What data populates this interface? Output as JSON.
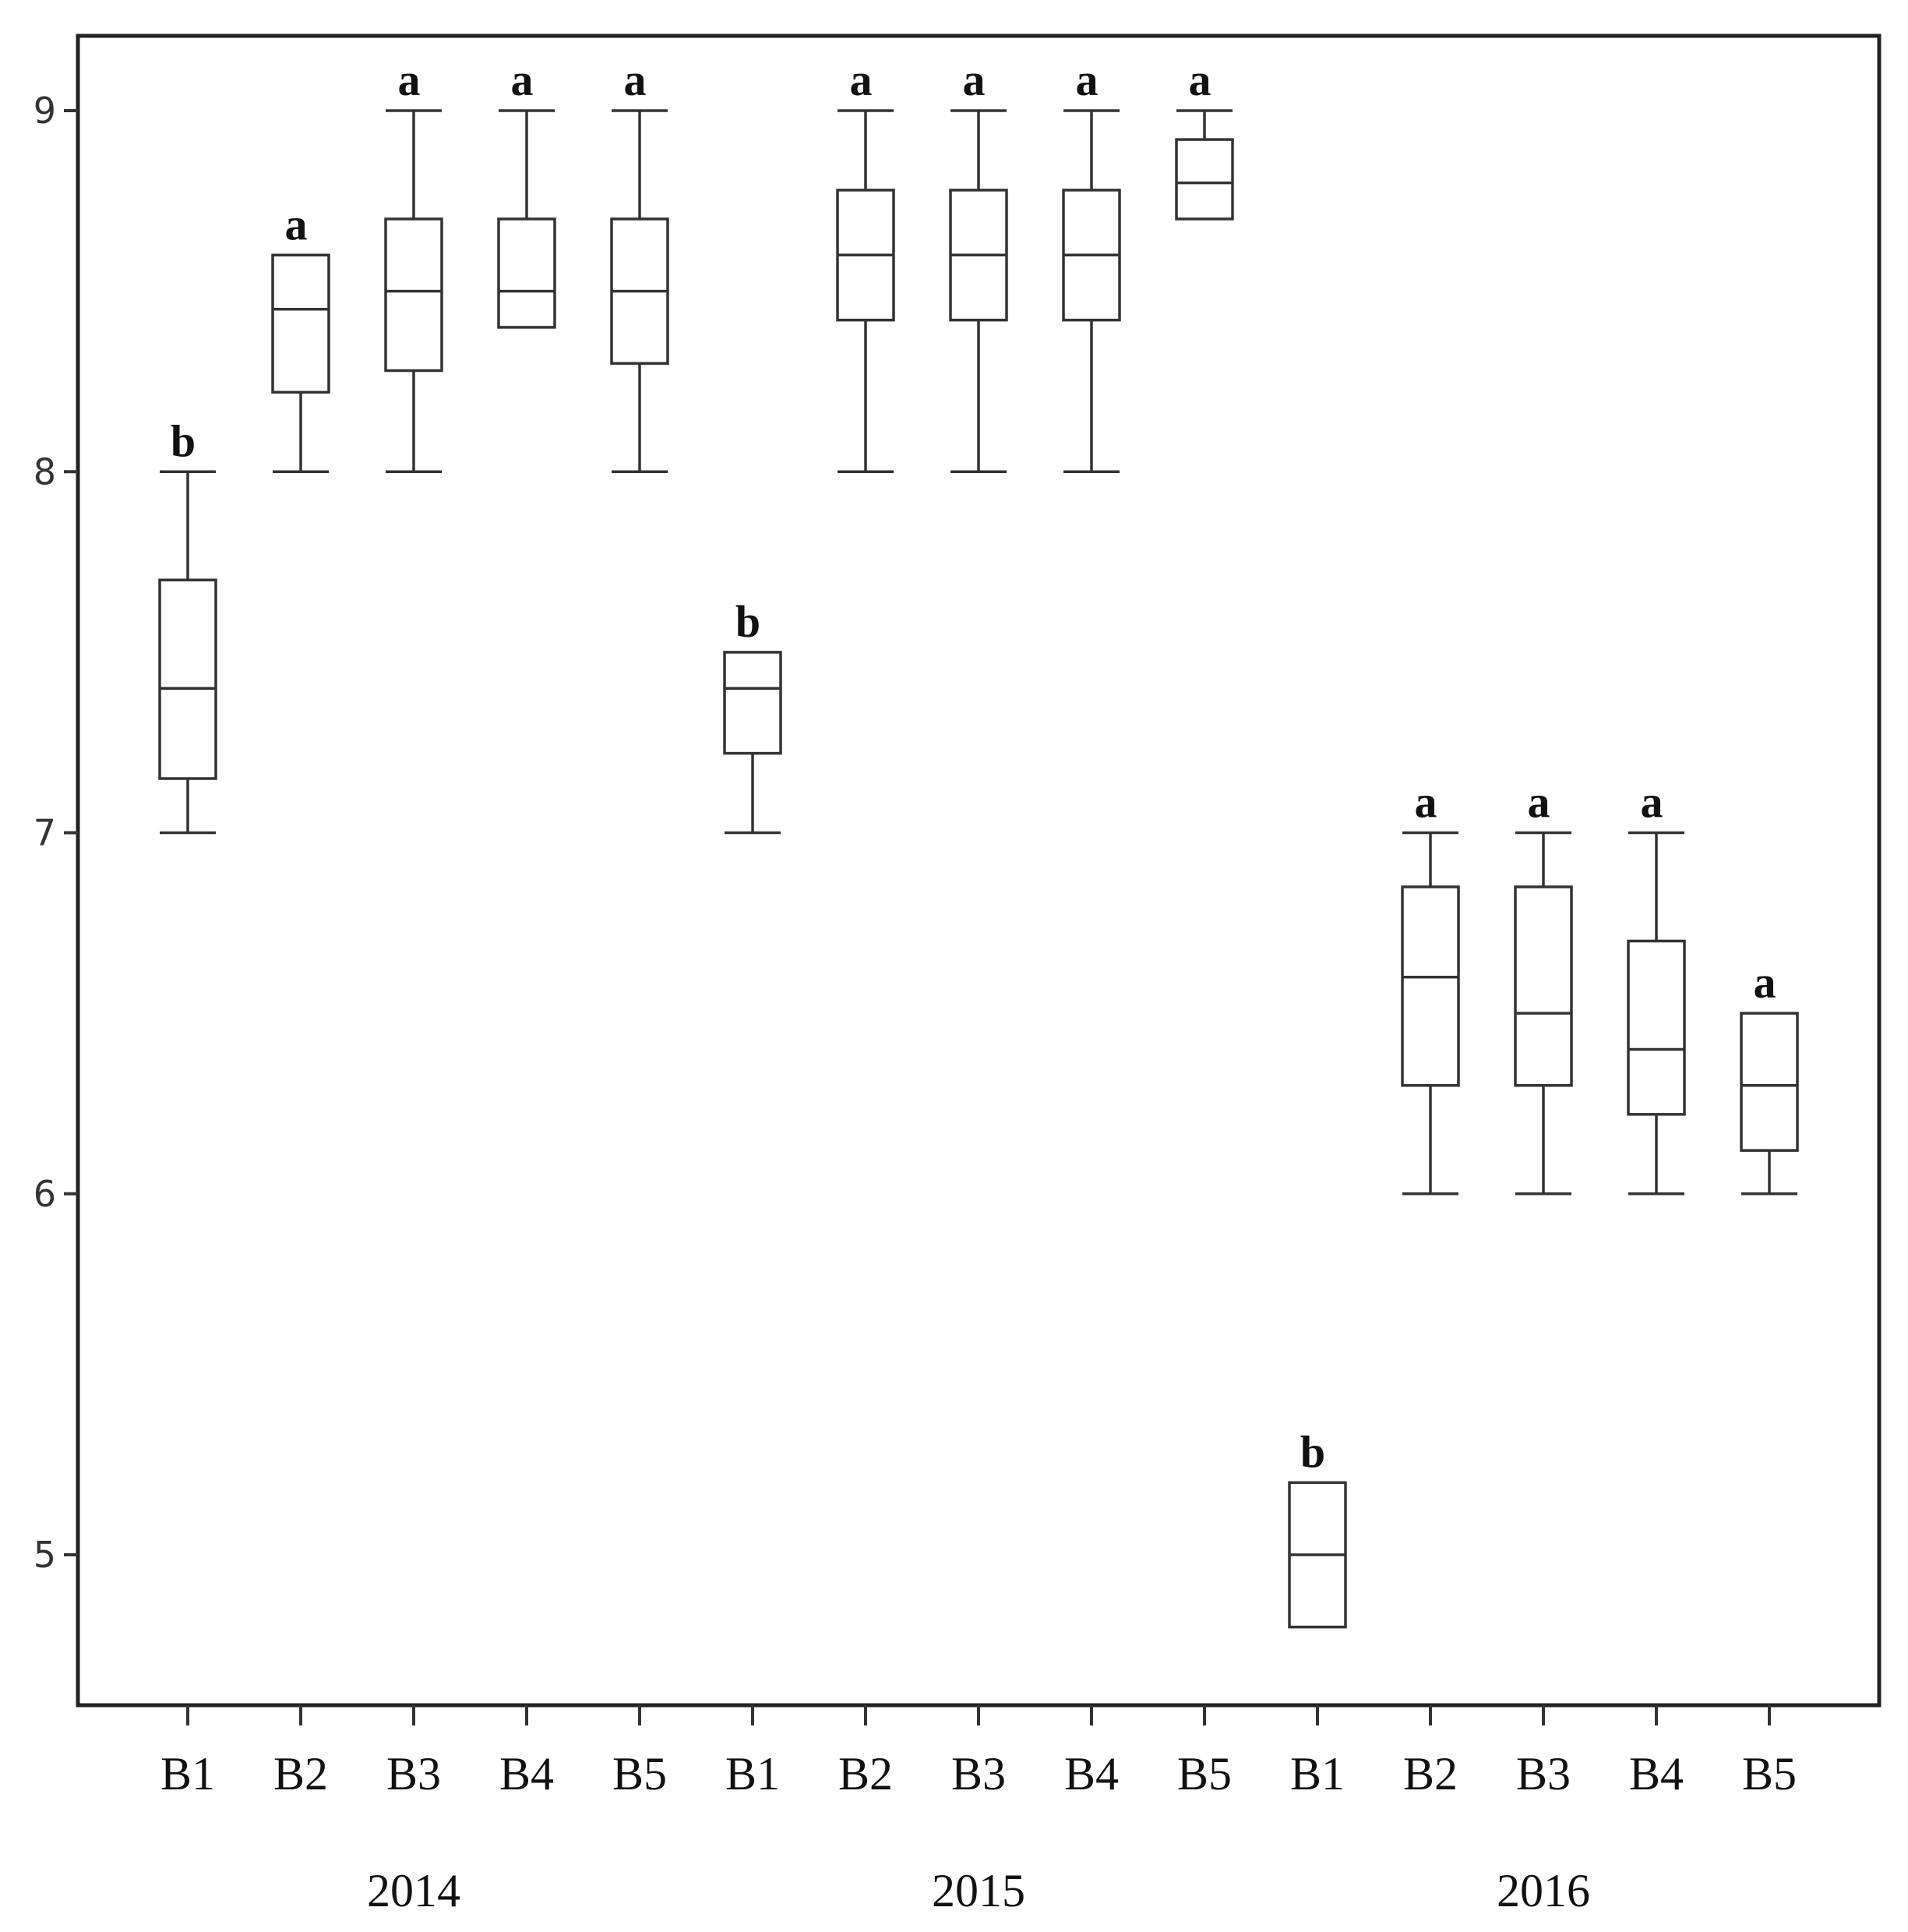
{
  "chart_data": {
    "type": "boxplot",
    "title": "",
    "xlabel": "",
    "ylabel": "",
    "ylim": [
      4.6,
      9.2
    ],
    "yticks": [
      5,
      6,
      7,
      8,
      9
    ],
    "grid": false,
    "legend": "none",
    "groups": [
      "2014",
      "2015",
      "2016"
    ],
    "categories": [
      "B1",
      "B2",
      "B3",
      "B4",
      "B5",
      "B1",
      "B2",
      "B3",
      "B4",
      "B5",
      "B1",
      "B2",
      "B3",
      "B4",
      "B5"
    ],
    "boxes": [
      {
        "group": "2014",
        "label": "B1",
        "min": 7.0,
        "q1": 7.15,
        "median": 7.4,
        "q3": 7.7,
        "max": 8.0,
        "sig": "b"
      },
      {
        "group": "2014",
        "label": "B2",
        "min": 8.0,
        "q1": 8.22,
        "median": 8.45,
        "q3": 8.6,
        "max": 8.6,
        "sig": "a"
      },
      {
        "group": "2014",
        "label": "B3",
        "min": 8.0,
        "q1": 8.28,
        "median": 8.5,
        "q3": 8.7,
        "max": 9.0,
        "sig": "a"
      },
      {
        "group": "2014",
        "label": "B4",
        "min": 8.4,
        "q1": 8.4,
        "median": 8.5,
        "q3": 8.7,
        "max": 9.0,
        "sig": "a"
      },
      {
        "group": "2014",
        "label": "B5",
        "min": 8.0,
        "q1": 8.3,
        "median": 8.5,
        "q3": 8.7,
        "max": 9.0,
        "sig": "a"
      },
      {
        "group": "2015",
        "label": "B1",
        "min": 7.0,
        "q1": 7.22,
        "median": 7.4,
        "q3": 7.5,
        "max": 7.5,
        "sig": "b"
      },
      {
        "group": "2015",
        "label": "B2",
        "min": 8.0,
        "q1": 8.42,
        "median": 8.6,
        "q3": 8.78,
        "max": 9.0,
        "sig": "a"
      },
      {
        "group": "2015",
        "label": "B3",
        "min": 8.0,
        "q1": 8.42,
        "median": 8.6,
        "q3": 8.78,
        "max": 9.0,
        "sig": "a"
      },
      {
        "group": "2015",
        "label": "B4",
        "min": 8.0,
        "q1": 8.42,
        "median": 8.6,
        "q3": 8.78,
        "max": 9.0,
        "sig": "a"
      },
      {
        "group": "2015",
        "label": "B5",
        "min": 8.7,
        "q1": 8.7,
        "median": 8.8,
        "q3": 8.92,
        "max": 9.0,
        "sig": "a"
      },
      {
        "group": "2016",
        "label": "B1",
        "min": 4.8,
        "q1": 4.8,
        "median": 5.0,
        "q3": 5.2,
        "max": 5.2,
        "sig": "b"
      },
      {
        "group": "2016",
        "label": "B2",
        "min": 6.0,
        "q1": 6.3,
        "median": 6.6,
        "q3": 6.85,
        "max": 7.0,
        "sig": "a"
      },
      {
        "group": "2016",
        "label": "B3",
        "min": 6.0,
        "q1": 6.3,
        "median": 6.5,
        "q3": 6.85,
        "max": 7.0,
        "sig": "a"
      },
      {
        "group": "2016",
        "label": "B4",
        "min": 6.0,
        "q1": 6.22,
        "median": 6.4,
        "q3": 6.7,
        "max": 7.0,
        "sig": "a"
      },
      {
        "group": "2016",
        "label": "B5",
        "min": 6.0,
        "q1": 6.12,
        "median": 6.3,
        "q3": 6.5,
        "max": 6.5,
        "sig": "a"
      }
    ]
  }
}
